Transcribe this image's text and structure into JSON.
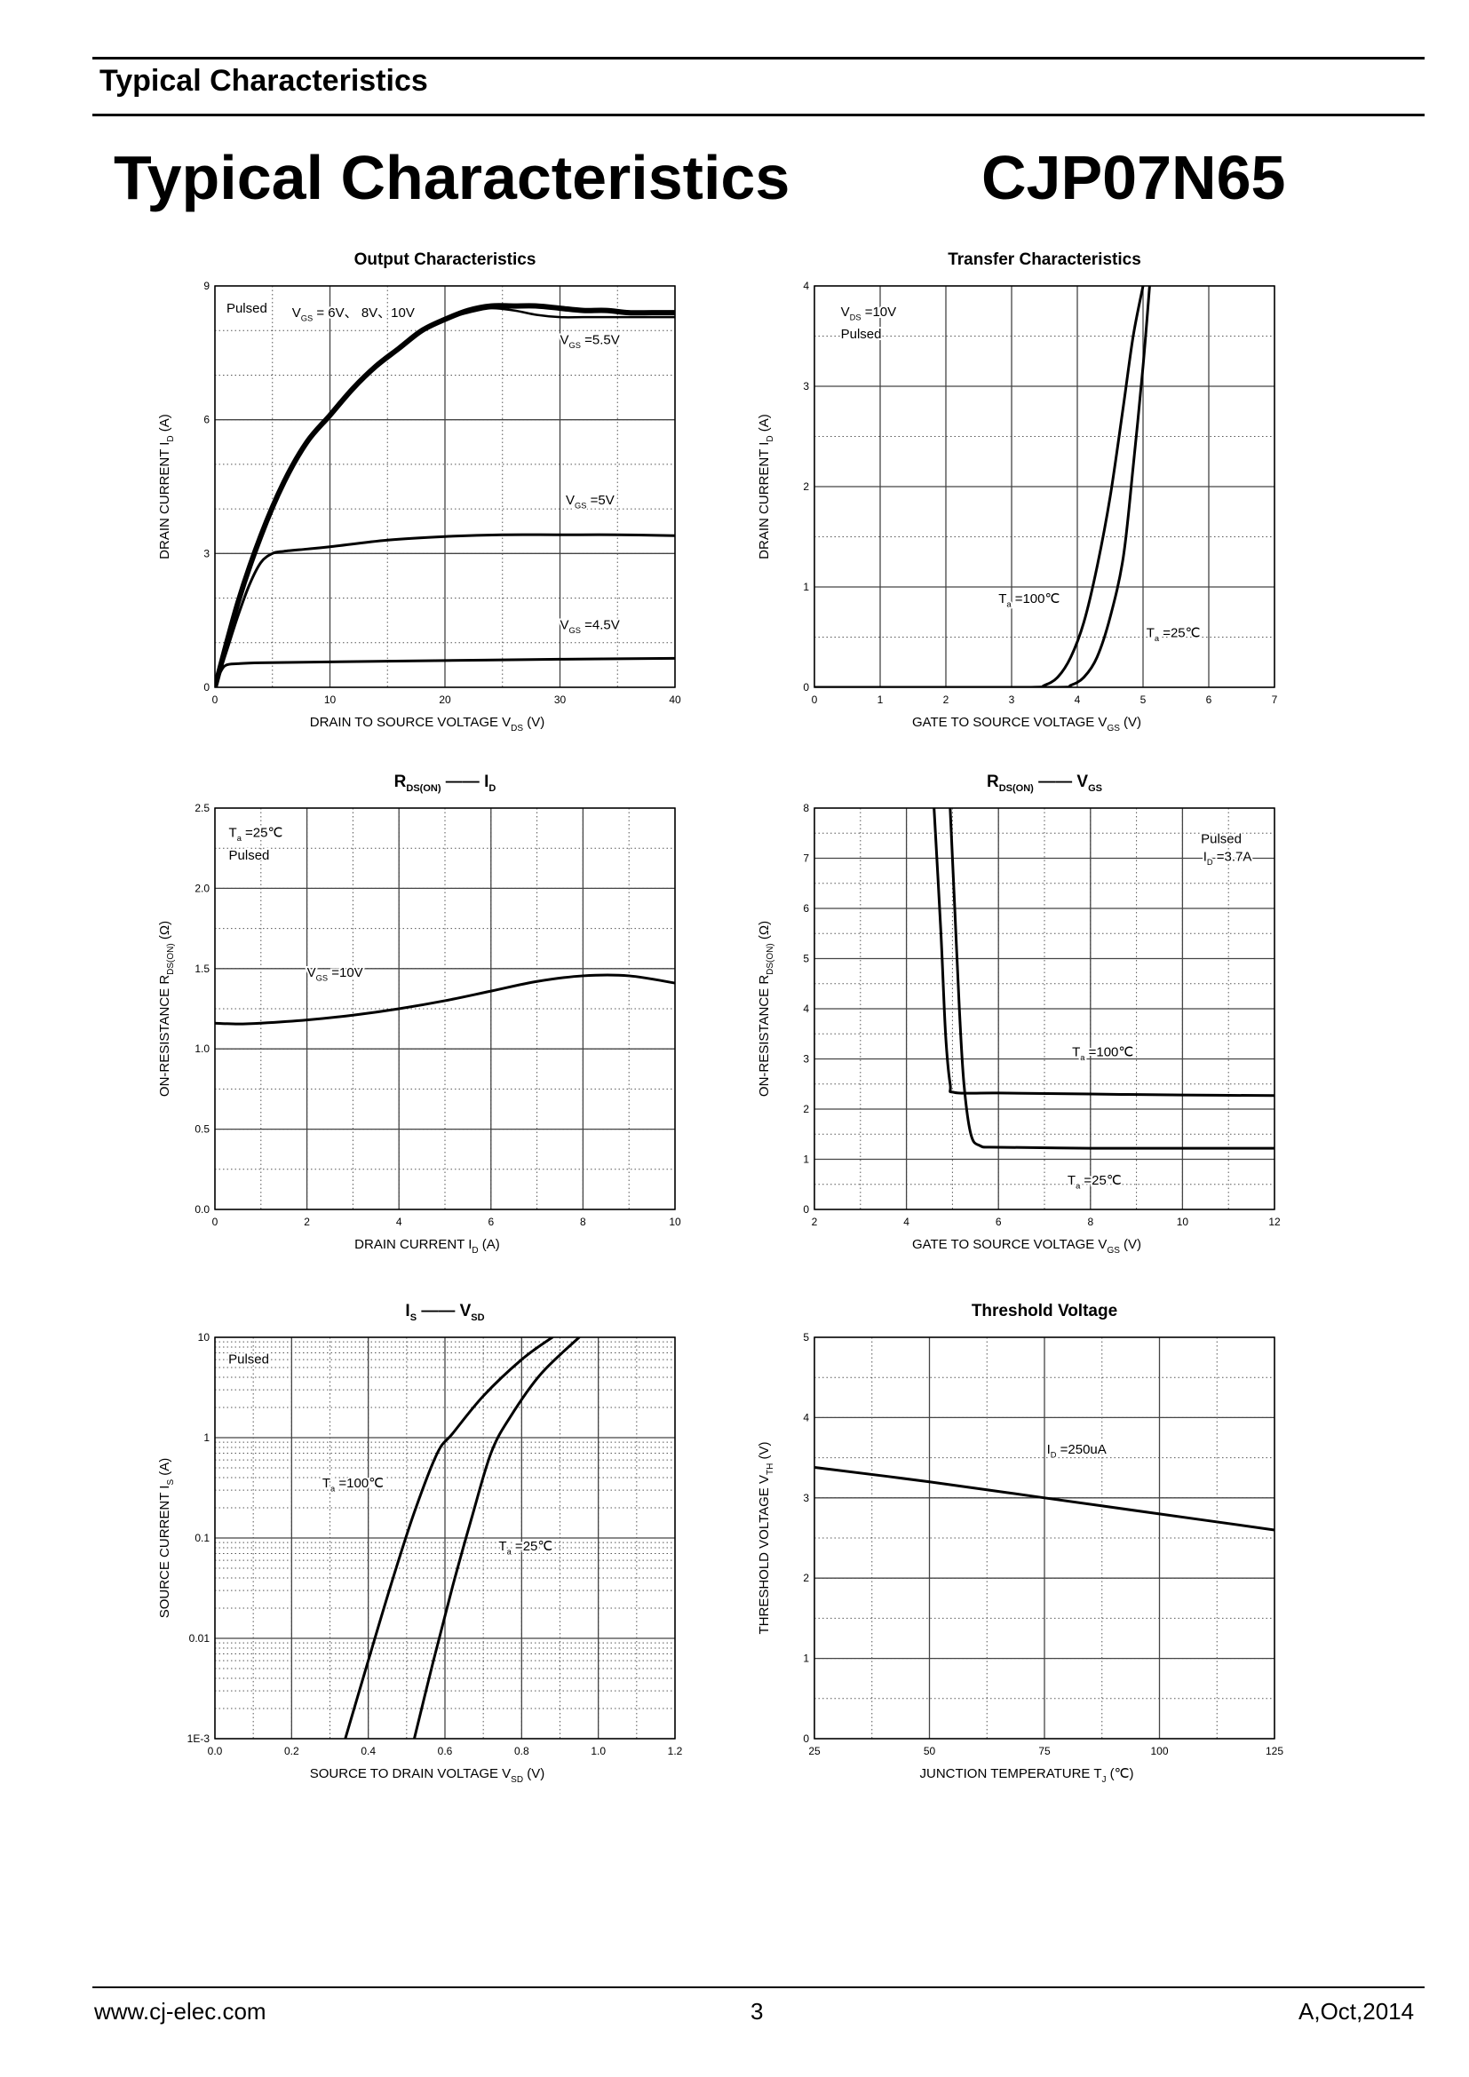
{
  "header": {
    "section_title": "Typical Characteristics"
  },
  "page_title": "Typical Characteristics",
  "part_number": "CJP07N65",
  "footer": {
    "website": "www.cj-elec.com",
    "page_number": "3",
    "revision": "A,Oct,2014"
  },
  "chart_data": [
    {
      "id": "c1",
      "type": "line",
      "title": "Output Characteristics",
      "xlabel": [
        "DRAIN TO SOURCE VOLTAGE",
        "V",
        "DS",
        "(V)"
      ],
      "ylabel": [
        "DRAIN CURRENT",
        "I",
        "D",
        "(A)"
      ],
      "xlim": [
        0,
        40
      ],
      "ylim": [
        0,
        9
      ],
      "xticks": [
        0,
        10,
        20,
        30,
        40
      ],
      "yticks": [
        0,
        3,
        6,
        9
      ],
      "xminor": 8,
      "yminor": 9,
      "annotations": [
        {
          "text": "Pulsed",
          "x": 1,
          "y": 8.4
        },
        {
          "text": "V",
          "sub": "GS",
          "rest": "= 6V、 8V、10V",
          "x": 6.7,
          "y": 8.3
        },
        {
          "text": "V",
          "sub": "GS",
          "rest": "=5.5V",
          "x": 30,
          "y": 7.7
        },
        {
          "text": "V",
          "sub": "GS",
          "rest": "=5V",
          "x": 30.5,
          "y": 4.1
        },
        {
          "text": "V",
          "sub": "GS",
          "rest": "=4.5V",
          "x": 30,
          "y": 1.3
        }
      ],
      "series": [
        {
          "name": "VGS=6V, 8V, 10V",
          "x": [
            0,
            2,
            4,
            6,
            8,
            10,
            12,
            14,
            16,
            18,
            20,
            22,
            24,
            26,
            28,
            30,
            32,
            34,
            36,
            38,
            40
          ],
          "y": [
            0,
            1.9,
            3.4,
            4.6,
            5.5,
            6.1,
            6.7,
            7.2,
            7.6,
            8.0,
            8.25,
            8.45,
            8.55,
            8.55,
            8.55,
            8.5,
            8.45,
            8.45,
            8.4,
            8.4,
            8.4
          ],
          "width": 6
        },
        {
          "name": "VGS=5.5V",
          "x": [
            0,
            2,
            4,
            6,
            8,
            10,
            12,
            14,
            16,
            18,
            20,
            22,
            24,
            26,
            28,
            30,
            32,
            34,
            36,
            38,
            40
          ],
          "y": [
            0,
            1.9,
            3.4,
            4.6,
            5.5,
            6.1,
            6.7,
            7.2,
            7.6,
            8.0,
            8.25,
            8.4,
            8.5,
            8.45,
            8.35,
            8.3,
            8.3,
            8.3,
            8.3,
            8.3,
            8.3
          ],
          "width": 2.5
        },
        {
          "name": "VGS=5V",
          "x": [
            0,
            1,
            2,
            3,
            4,
            5,
            6,
            8,
            10,
            15,
            20,
            25,
            30,
            35,
            40
          ],
          "y": [
            0,
            0.8,
            1.6,
            2.3,
            2.8,
            3.0,
            3.05,
            3.1,
            3.15,
            3.3,
            3.38,
            3.42,
            3.42,
            3.42,
            3.4
          ],
          "width": 3
        },
        {
          "name": "VGS=4.5V",
          "x": [
            0,
            0.5,
            1,
            2,
            4,
            10,
            20,
            30,
            40
          ],
          "y": [
            0,
            0.35,
            0.5,
            0.53,
            0.55,
            0.57,
            0.6,
            0.63,
            0.65
          ],
          "width": 3
        }
      ]
    },
    {
      "id": "c2",
      "type": "line",
      "title": "Transfer Characteristics",
      "xlabel": [
        "GATE TO SOURCE VOLTAGE",
        "V",
        "GS",
        "(V)"
      ],
      "ylabel": [
        "DRAIN CURRENT",
        "I",
        "D",
        "(A)"
      ],
      "xlim": [
        0,
        7
      ],
      "ylim": [
        0,
        4
      ],
      "xticks": [
        0,
        1,
        2,
        3,
        4,
        5,
        6,
        7
      ],
      "yticks": [
        0,
        1,
        2,
        3,
        4
      ],
      "xminor": 7,
      "yminor": 8,
      "annotations": [
        {
          "text": "V",
          "sub": "DS",
          "rest": "=10V",
          "x": 0.4,
          "y": 3.7
        },
        {
          "text": "Pulsed",
          "x": 0.4,
          "y": 3.48
        },
        {
          "text": "T",
          "sub": "a",
          "rest": "=100℃",
          "x": 2.8,
          "y": 0.84
        },
        {
          "text": "T",
          "sub": "a",
          "rest": "=25℃",
          "x": 5.05,
          "y": 0.5
        }
      ],
      "series": [
        {
          "name": "Ta=100℃",
          "x": [
            0,
            2,
            3.3,
            3.5,
            3.7,
            3.9,
            4.1,
            4.3,
            4.5,
            4.7,
            4.85,
            5.0
          ],
          "y": [
            0,
            0,
            0,
            0.02,
            0.1,
            0.3,
            0.65,
            1.2,
            1.9,
            2.8,
            3.5,
            4.0
          ],
          "width": 3
        },
        {
          "name": "Ta=25℃",
          "x": [
            0,
            2,
            3.7,
            3.9,
            4.1,
            4.3,
            4.5,
            4.7,
            4.85,
            5.0,
            5.1
          ],
          "y": [
            0,
            0,
            0,
            0.02,
            0.1,
            0.3,
            0.7,
            1.3,
            2.2,
            3.2,
            4.0
          ],
          "width": 3
        }
      ]
    },
    {
      "id": "c3",
      "type": "line",
      "title": "",
      "title_parts": [
        "R",
        "DS(ON)",
        "——",
        "I",
        "D"
      ],
      "xlabel": [
        "DRAIN CURRENT",
        "I",
        "D",
        "(A)"
      ],
      "ylabel": [
        "ON-RESISTANCE",
        "R",
        "DS(ON)",
        "(Ω)"
      ],
      "xlim": [
        0,
        10
      ],
      "ylim": [
        0,
        2.5
      ],
      "xticks": [
        0,
        2,
        4,
        6,
        8,
        10
      ],
      "yticks": [
        0.0,
        0.5,
        1.0,
        1.5,
        2.0,
        2.5
      ],
      "xminor": 10,
      "yminor": 10,
      "annotations": [
        {
          "text": "T",
          "sub": "a",
          "rest": "=25℃",
          "x": 0.3,
          "y": 2.32
        },
        {
          "text": "Pulsed",
          "x": 0.3,
          "y": 2.18
        },
        {
          "text": "V",
          "sub": "GS",
          "rest": "=10V",
          "x": 2.0,
          "y": 1.45
        }
      ],
      "series": [
        {
          "name": "VGS=10V",
          "x": [
            0,
            0.5,
            1,
            2,
            3,
            4,
            5,
            6,
            7,
            8,
            9,
            10
          ],
          "y": [
            1.16,
            1.155,
            1.16,
            1.18,
            1.21,
            1.25,
            1.3,
            1.36,
            1.42,
            1.455,
            1.455,
            1.41
          ],
          "width": 3
        }
      ]
    },
    {
      "id": "c4",
      "type": "line",
      "title": "",
      "title_parts": [
        "R",
        "DS(ON)",
        "——",
        "V",
        "GS"
      ],
      "xlabel": [
        "GATE TO SOURCE VOLTAGE",
        "V",
        "GS",
        "(V)"
      ],
      "ylabel": [
        "ON-RESISTANCE",
        "R",
        "DS(ON)",
        "(Ω)"
      ],
      "xlim": [
        2,
        12
      ],
      "ylim": [
        0,
        8
      ],
      "xticks": [
        2,
        4,
        6,
        8,
        10,
        12
      ],
      "yticks": [
        0,
        1,
        2,
        3,
        4,
        5,
        6,
        7,
        8
      ],
      "xminor": 10,
      "yminor": 16,
      "annotations": [
        {
          "text": "Pulsed",
          "x": 10.4,
          "y": 7.3
        },
        {
          "text": "I",
          "sub": "D",
          "rest": "=3.7A",
          "x": 10.45,
          "y": 6.95
        },
        {
          "text": "T",
          "sub": "a",
          "rest": "=100℃",
          "x": 7.6,
          "y": 3.05
        },
        {
          "text": "T",
          "sub": "a",
          "rest": "=25℃",
          "x": 7.5,
          "y": 0.5
        }
      ],
      "series": [
        {
          "name": "Ta=100℃",
          "x": [
            4.6,
            4.75,
            4.85,
            4.95,
            5.05,
            6,
            8,
            10,
            12
          ],
          "y": [
            8,
            5.5,
            3.5,
            2.5,
            2.33,
            2.32,
            2.3,
            2.28,
            2.27
          ],
          "width": 3
        },
        {
          "name": "Ta=25℃",
          "x": [
            4.95,
            5.05,
            5.15,
            5.25,
            5.4,
            5.6,
            6,
            8,
            10,
            12
          ],
          "y": [
            8,
            6.0,
            4.0,
            2.5,
            1.5,
            1.27,
            1.24,
            1.22,
            1.22,
            1.22
          ],
          "width": 3
        }
      ]
    },
    {
      "id": "c5",
      "type": "line",
      "title": "",
      "title_parts": [
        "I",
        "S",
        "——",
        "V",
        "SD"
      ],
      "xlabel": [
        "SOURCE TO DRAIN VOLTAGE",
        "V",
        "SD",
        "(V)"
      ],
      "ylabel": [
        "SOURCE CURRENT",
        "I",
        "S",
        "(A)"
      ],
      "xlim": [
        0,
        1.2
      ],
      "ylim": [
        0.001,
        10
      ],
      "yscale": "log",
      "xticks": [
        0.0,
        0.2,
        0.4,
        0.6,
        0.8,
        1.0,
        1.2
      ],
      "xticklabels": [
        "0.0",
        "0.2",
        "0.4",
        "0.6",
        "0.8",
        "1.0",
        "1.2"
      ],
      "yticks": [
        0.001,
        0.01,
        0.1,
        1,
        10
      ],
      "yticklabels": [
        "1E-3",
        "0.01",
        "0.1",
        "1",
        "10"
      ],
      "xminor": 12,
      "annotations": [
        {
          "text": "Pulsed",
          "x": 0.035,
          "y": 5.5
        },
        {
          "text": "T",
          "sub": "a",
          "rest": "=100℃",
          "x": 0.28,
          "y": 0.32
        },
        {
          "text": "T",
          "sub": "a",
          "rest": "=25℃",
          "x": 0.74,
          "y": 0.075
        }
      ],
      "series": [
        {
          "name": "Ta=100℃",
          "x": [
            0.34,
            0.4,
            0.46,
            0.52,
            0.58,
            0.62,
            0.7,
            0.8,
            0.88
          ],
          "y": [
            0.001,
            0.006,
            0.035,
            0.18,
            0.7,
            1.1,
            2.6,
            6.0,
            10
          ],
          "width": 3
        },
        {
          "name": "Ta=25℃",
          "x": [
            0.52,
            0.57,
            0.62,
            0.67,
            0.72,
            0.77,
            0.85,
            0.95
          ],
          "y": [
            0.001,
            0.006,
            0.033,
            0.16,
            0.7,
            1.6,
            4.3,
            10
          ],
          "width": 3
        }
      ]
    },
    {
      "id": "c6",
      "type": "line",
      "title": "Threshold Voltage",
      "xlabel": [
        "JUNCTION TEMPERATURE",
        "T",
        "J",
        "(℃)"
      ],
      "ylabel": [
        "THRESHOLD VOLTAGE",
        "V",
        "TH",
        "(V)"
      ],
      "xlim": [
        25,
        125
      ],
      "ylim": [
        0,
        5
      ],
      "xticks": [
        25,
        50,
        75,
        100,
        125
      ],
      "yticks": [
        0,
        1,
        2,
        3,
        4,
        5
      ],
      "xminor": 8,
      "yminor": 10,
      "annotations": [
        {
          "text": "I",
          "sub": "D",
          "rest": "=250uA",
          "x": 75.5,
          "y": 3.55
        }
      ],
      "series": [
        {
          "name": "ID=250uA",
          "x": [
            25,
            50,
            75,
            100,
            125
          ],
          "y": [
            3.38,
            3.2,
            3.0,
            2.8,
            2.6
          ],
          "width": 3
        }
      ]
    }
  ]
}
